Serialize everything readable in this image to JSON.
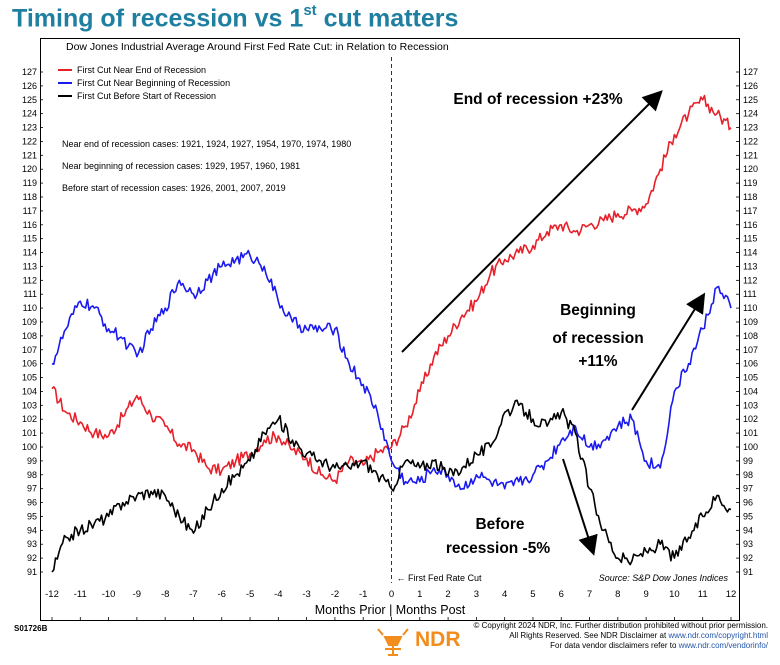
{
  "headline": {
    "main": "Timing of recession vs 1",
    "sup": "st",
    "tail": " cut matters"
  },
  "footer": {
    "chart_code": "S01726B",
    "copyright_line1": "© Copyright 2024 NDR, Inc. Further distribution prohibited without prior permission.",
    "copyright_line2_prefix": "All Rights Reserved. See NDR Disclaimer at ",
    "copyright_line2_link": "www.ndr.com/copyright.html",
    "copyright_line3_prefix": "For data vendor disclaimers refer to ",
    "copyright_line3_link": "www.ndr.com/vendorinfo/",
    "logo_text": "NDR"
  },
  "colors": {
    "red": "#e8202a",
    "blue": "#1a1aee",
    "black": "#000000",
    "headline": "#1f7fa0",
    "logo": "#f28c1c"
  },
  "chart_data": {
    "type": "line",
    "title": "Dow Jones Industrial Average Around First Fed Rate Cut: in Relation to Recession",
    "xlabel": "Months Prior | Months Post",
    "ylabel": "",
    "xlim": [
      -12,
      12
    ],
    "ylim": [
      90.5,
      127.5
    ],
    "x_ticks": [
      -12,
      -11,
      -10,
      -9,
      -8,
      -7,
      -6,
      -5,
      -4,
      -3,
      -2,
      -1,
      0,
      1,
      2,
      3,
      4,
      5,
      6,
      7,
      8,
      9,
      10,
      11,
      12
    ],
    "y_ticks": [
      91,
      92,
      93,
      94,
      95,
      96,
      97,
      98,
      99,
      100,
      101,
      102,
      103,
      104,
      105,
      106,
      107,
      108,
      109,
      110,
      111,
      112,
      113,
      114,
      115,
      116,
      117,
      118,
      119,
      120,
      121,
      122,
      123,
      124,
      125,
      126,
      127
    ],
    "legend_position": "top-left",
    "grid": false,
    "vline": {
      "x": 0,
      "label": "First Fed Rate Cut"
    },
    "notes": [
      "Near end of recession cases: 1921, 1924, 1927, 1954, 1970, 1974, 1980",
      "Near beginning of recession cases: 1929, 1957, 1960, 1981",
      "Before start of recession cases: 1926, 2001, 2007, 2019"
    ],
    "source": "Source: S&P Dow Jones Indices",
    "annotations": [
      {
        "text": "End of recession +23%"
      },
      {
        "lines": [
          "Beginning",
          "of recession",
          "+11%"
        ]
      },
      {
        "lines": [
          "Before",
          "recession -5%"
        ]
      }
    ],
    "series": [
      {
        "name": "First Cut Near End of Recession",
        "color": "#e8202a",
        "x": [
          -12,
          -11.5,
          -11,
          -10.5,
          -10,
          -9.5,
          -9,
          -8.5,
          -8,
          -7.5,
          -7,
          -6.5,
          -6,
          -5.5,
          -5,
          -4.5,
          -4,
          -3.5,
          -3,
          -2.5,
          -2,
          -1.5,
          -1,
          -0.5,
          0,
          0.5,
          1,
          1.5,
          2,
          2.5,
          3,
          3.5,
          4,
          4.5,
          5,
          5.5,
          6,
          6.5,
          7,
          7.5,
          8,
          8.5,
          9,
          9.5,
          10,
          10.5,
          11,
          11.5,
          12
        ],
        "values": [
          104.2,
          102.5,
          101.8,
          101.0,
          100.8,
          102.2,
          103.7,
          102.3,
          101.5,
          100.2,
          99.8,
          98.5,
          98.3,
          99.0,
          99.5,
          100.5,
          100.8,
          99.8,
          99.2,
          98.0,
          97.6,
          99.0,
          98.7,
          99.6,
          100.0,
          101.5,
          104.0,
          106.5,
          108.0,
          109.5,
          110.5,
          112.5,
          113.5,
          114.0,
          114.5,
          115.5,
          116.0,
          115.5,
          116.0,
          116.3,
          116.8,
          117.0,
          117.5,
          120.0,
          122.5,
          124.0,
          125.0,
          124.0,
          123.0
        ]
      },
      {
        "name": "First Cut Near Beginning of Recession",
        "color": "#1a1aee",
        "x": [
          -12,
          -11.5,
          -11,
          -10.5,
          -10,
          -9.5,
          -9,
          -8.5,
          -8,
          -7.5,
          -7,
          -6.5,
          -6,
          -5.5,
          -5,
          -4.5,
          -4,
          -3.5,
          -3,
          -2.5,
          -2,
          -1.5,
          -1,
          -0.5,
          0,
          0.5,
          1,
          1.5,
          2,
          2.5,
          3,
          3.5,
          4,
          4.5,
          5,
          5.5,
          6,
          6.5,
          7,
          7.5,
          8,
          8.5,
          9,
          9.5,
          10,
          10.5,
          11,
          11.5,
          12
        ],
        "values": [
          106.0,
          108.5,
          110.5,
          110.0,
          108.5,
          107.8,
          106.5,
          108.5,
          110.0,
          112.0,
          111.0,
          112.0,
          113.0,
          113.5,
          113.8,
          113.0,
          110.5,
          109.0,
          108.5,
          108.5,
          108.5,
          106.0,
          104.5,
          102.5,
          99.0,
          97.5,
          97.5,
          98.5,
          98.0,
          97.0,
          98.0,
          97.5,
          97.0,
          97.5,
          98.0,
          99.0,
          100.5,
          101.5,
          100.0,
          100.5,
          101.5,
          102.0,
          99.0,
          98.5,
          104.0,
          106.0,
          108.5,
          111.5,
          110.0
        ]
      },
      {
        "name": "First Cut Before Start of Recession",
        "color": "#000000",
        "x": [
          -12,
          -11.5,
          -11,
          -10.5,
          -10,
          -9.5,
          -9,
          -8.5,
          -8,
          -7.5,
          -7,
          -6.5,
          -6,
          -5.5,
          -5,
          -4.5,
          -4,
          -3.5,
          -3,
          -2.5,
          -2,
          -1.5,
          -1,
          -0.5,
          0,
          0.5,
          1,
          1.5,
          2,
          2.5,
          3,
          3.5,
          4,
          4.5,
          5,
          5.5,
          6,
          6.5,
          7,
          7.5,
          8,
          8.5,
          9,
          9.5,
          10,
          10.5,
          11,
          11.5,
          12
        ],
        "values": [
          91.0,
          93.5,
          94.0,
          94.5,
          95.0,
          96.0,
          96.5,
          96.8,
          96.5,
          95.0,
          93.8,
          95.5,
          97.0,
          98.0,
          99.0,
          101.0,
          102.0,
          100.5,
          99.5,
          99.0,
          98.5,
          98.5,
          99.0,
          98.0,
          97.0,
          99.0,
          98.5,
          99.0,
          98.0,
          98.5,
          99.5,
          100.0,
          102.5,
          103.0,
          102.0,
          101.5,
          102.5,
          101.0,
          97.0,
          94.0,
          92.0,
          91.8,
          92.5,
          93.0,
          92.0,
          93.5,
          95.0,
          96.5,
          95.5
        ]
      }
    ]
  }
}
